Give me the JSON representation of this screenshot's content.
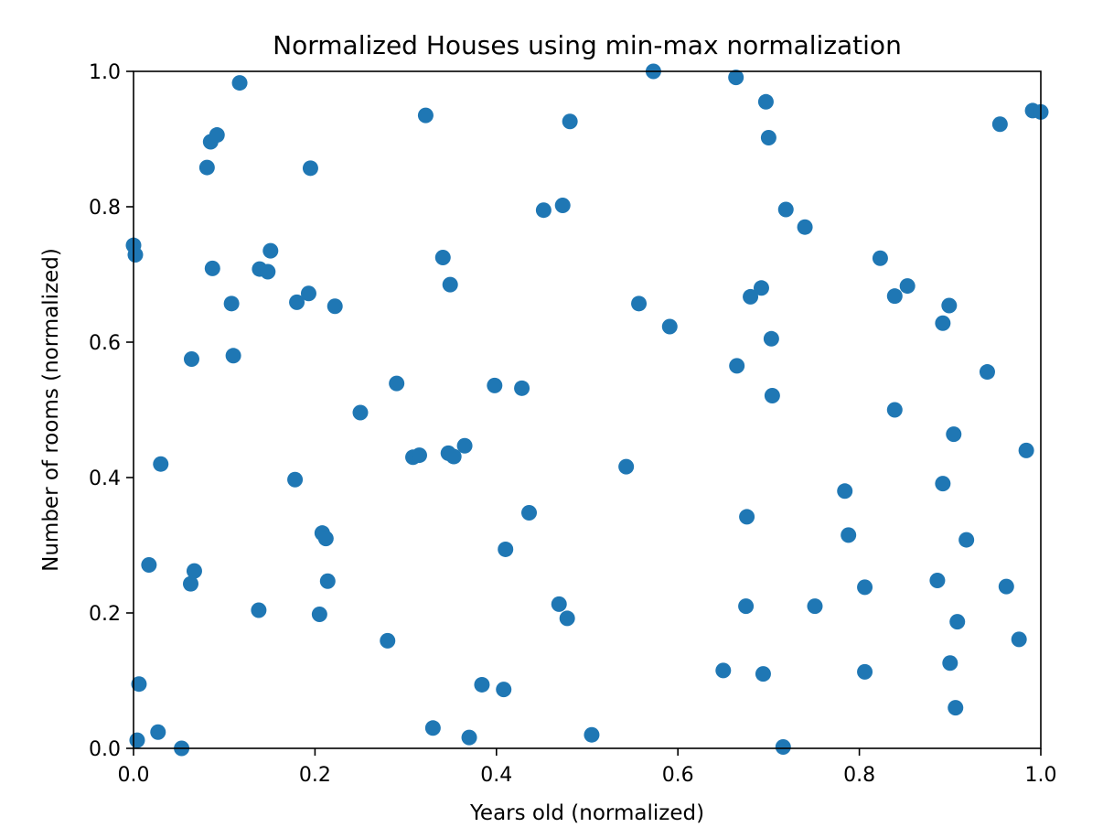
{
  "chart_data": {
    "type": "scatter",
    "title": "Normalized Houses using min-max normalization",
    "xlabel": "Years old (normalized)",
    "ylabel": "Number of rooms (normalized)",
    "xlim": [
      0.0,
      1.0
    ],
    "ylim": [
      0.0,
      1.0
    ],
    "x_ticks": [
      "0.0",
      "0.2",
      "0.4",
      "0.6",
      "0.8",
      "1.0"
    ],
    "y_ticks": [
      "0.0",
      "0.2",
      "0.4",
      "0.6",
      "0.8",
      "1.0"
    ],
    "grid": false,
    "marker_color": "#1f77b4",
    "points": [
      [
        0.0,
        0.743
      ],
      [
        0.002,
        0.729
      ],
      [
        0.006,
        0.095
      ],
      [
        0.004,
        0.012
      ],
      [
        0.017,
        0.271
      ],
      [
        0.027,
        0.024
      ],
      [
        0.03,
        0.42
      ],
      [
        0.053,
        0.0
      ],
      [
        0.063,
        0.243
      ],
      [
        0.064,
        0.575
      ],
      [
        0.067,
        0.262
      ],
      [
        0.081,
        0.858
      ],
      [
        0.085,
        0.896
      ],
      [
        0.087,
        0.709
      ],
      [
        0.092,
        0.906
      ],
      [
        0.108,
        0.657
      ],
      [
        0.11,
        0.58
      ],
      [
        0.117,
        0.983
      ],
      [
        0.138,
        0.204
      ],
      [
        0.139,
        0.708
      ],
      [
        0.148,
        0.704
      ],
      [
        0.151,
        0.735
      ],
      [
        0.178,
        0.397
      ],
      [
        0.18,
        0.659
      ],
      [
        0.193,
        0.672
      ],
      [
        0.195,
        0.857
      ],
      [
        0.205,
        0.198
      ],
      [
        0.208,
        0.318
      ],
      [
        0.212,
        0.31
      ],
      [
        0.214,
        0.247
      ],
      [
        0.222,
        0.653
      ],
      [
        0.25,
        0.496
      ],
      [
        0.28,
        0.159
      ],
      [
        0.29,
        0.539
      ],
      [
        0.308,
        0.43
      ],
      [
        0.315,
        0.433
      ],
      [
        0.322,
        0.935
      ],
      [
        0.33,
        0.03
      ],
      [
        0.341,
        0.725
      ],
      [
        0.347,
        0.436
      ],
      [
        0.349,
        0.685
      ],
      [
        0.353,
        0.431
      ],
      [
        0.365,
        0.447
      ],
      [
        0.37,
        0.016
      ],
      [
        0.384,
        0.094
      ],
      [
        0.398,
        0.536
      ],
      [
        0.408,
        0.087
      ],
      [
        0.41,
        0.294
      ],
      [
        0.428,
        0.532
      ],
      [
        0.436,
        0.348
      ],
      [
        0.452,
        0.795
      ],
      [
        0.469,
        0.213
      ],
      [
        0.473,
        0.802
      ],
      [
        0.478,
        0.192
      ],
      [
        0.481,
        0.926
      ],
      [
        0.505,
        0.02
      ],
      [
        0.543,
        0.416
      ],
      [
        0.557,
        0.657
      ],
      [
        0.573,
        1.0
      ],
      [
        0.591,
        0.623
      ],
      [
        0.65,
        0.115
      ],
      [
        0.664,
        0.991
      ],
      [
        0.665,
        0.565
      ],
      [
        0.675,
        0.21
      ],
      [
        0.676,
        0.342
      ],
      [
        0.68,
        0.667
      ],
      [
        0.692,
        0.68
      ],
      [
        0.694,
        0.11
      ],
      [
        0.697,
        0.955
      ],
      [
        0.7,
        0.902
      ],
      [
        0.703,
        0.605
      ],
      [
        0.704,
        0.521
      ],
      [
        0.716,
        0.002
      ],
      [
        0.719,
        0.796
      ],
      [
        0.74,
        0.77
      ],
      [
        0.751,
        0.21
      ],
      [
        0.784,
        0.38
      ],
      [
        0.788,
        0.315
      ],
      [
        0.806,
        0.238
      ],
      [
        0.806,
        0.113
      ],
      [
        0.823,
        0.724
      ],
      [
        0.839,
        0.5
      ],
      [
        0.839,
        0.668
      ],
      [
        0.853,
        0.683
      ],
      [
        0.886,
        0.248
      ],
      [
        0.892,
        0.391
      ],
      [
        0.892,
        0.628
      ],
      [
        0.899,
        0.654
      ],
      [
        0.9,
        0.126
      ],
      [
        0.904,
        0.464
      ],
      [
        0.906,
        0.06
      ],
      [
        0.908,
        0.187
      ],
      [
        0.918,
        0.308
      ],
      [
        0.941,
        0.556
      ],
      [
        0.955,
        0.922
      ],
      [
        0.962,
        0.239
      ],
      [
        0.976,
        0.161
      ],
      [
        0.984,
        0.44
      ],
      [
        0.991,
        0.942
      ],
      [
        1.0,
        0.94
      ]
    ]
  }
}
